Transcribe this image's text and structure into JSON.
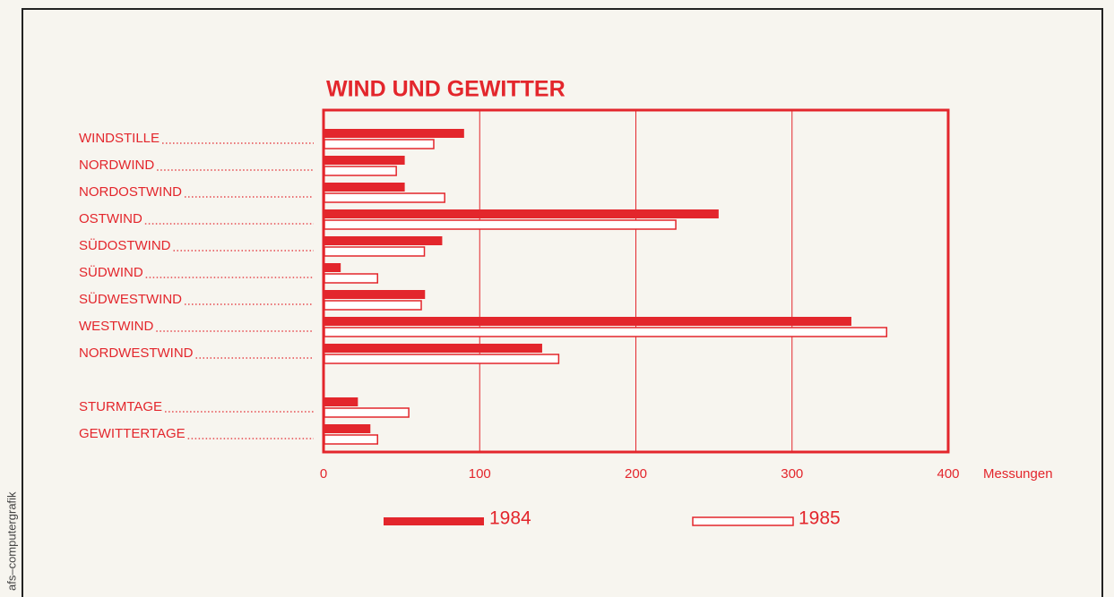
{
  "chart_data": {
    "type": "bar",
    "orientation": "horizontal",
    "title": "WIND UND GEWITTER",
    "x_label": "Messungen",
    "credit": "afs–computergrafik",
    "categories": [
      "WINDSTILLE",
      "NORDWIND",
      "NORDOSTWIND",
      "OSTWIND",
      "SÜDOSTWIND",
      "SÜDWIND",
      "SÜDWESTWIND",
      "WESTWIND",
      "NORDWESTWIND",
      null,
      "STURMTAGE",
      "GEWITTERTAGE"
    ],
    "series": [
      {
        "name": "1984",
        "color": "#e3262c",
        "style": "filled",
        "values": [
          90,
          52,
          52,
          253,
          76,
          11,
          65,
          338,
          140,
          null,
          22,
          30
        ]
      },
      {
        "name": "1985",
        "color": "#e3262c",
        "style": "outline",
        "values": [
          70,
          46,
          77,
          225,
          64,
          34,
          62,
          360,
          150,
          null,
          54,
          34
        ]
      }
    ],
    "xlim": [
      0,
      400
    ],
    "xticks": [
      0,
      100,
      200,
      300,
      400
    ],
    "grid": true
  }
}
